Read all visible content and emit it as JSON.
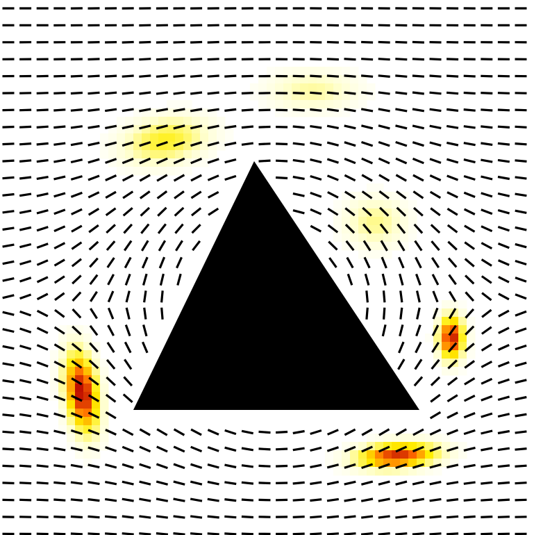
{
  "figure": {
    "kind": "director-field-around-triangular-obstacle",
    "colors": {
      "background": "#ffffff",
      "obstacle": "#000000",
      "director": "#000000",
      "heat_low": "#ffffd0",
      "heat_mid": "#ffee00",
      "heat_high": "#ff6a00",
      "heat_max": "#b40000"
    },
    "obstacle": {
      "shape": "triangle",
      "fill": "#000000"
    },
    "defects": [
      {
        "name": "left-defect",
        "intensity": 1.0
      },
      {
        "name": "right-defect",
        "intensity": 0.95
      },
      {
        "name": "bottom-right-defect",
        "intensity": 0.9
      },
      {
        "name": "top-left-glow",
        "intensity": 0.4
      },
      {
        "name": "top-center-glow",
        "intensity": 0.22
      },
      {
        "name": "upper-right-glow",
        "intensity": 0.25
      }
    ]
  }
}
